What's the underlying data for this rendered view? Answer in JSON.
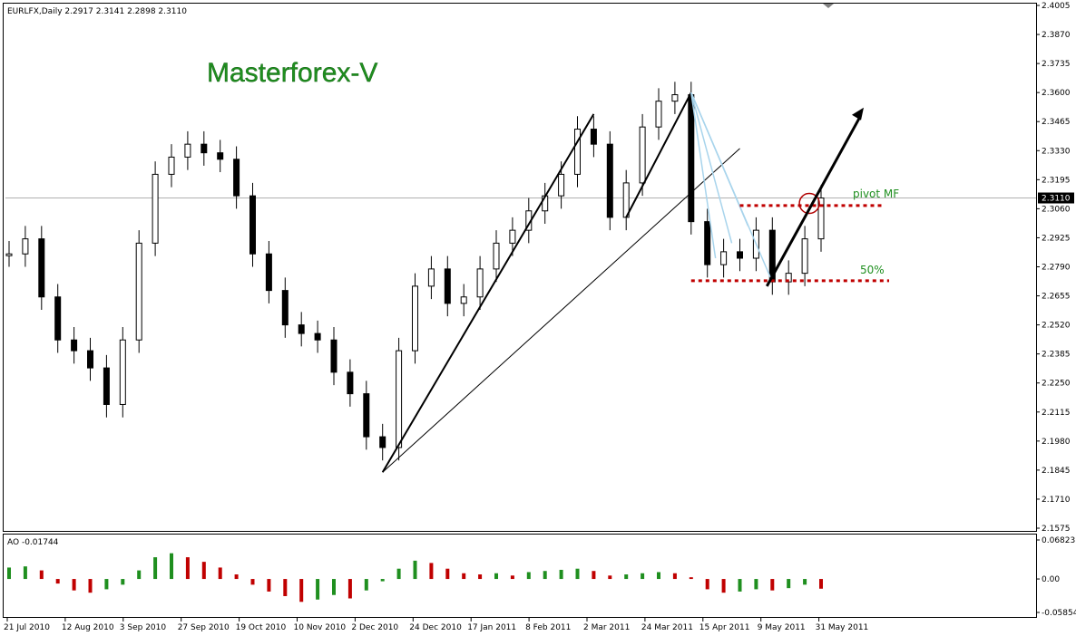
{
  "header": {
    "symbol_line": "EURLFX,Daily  2.2917 2.3141 2.2898 2.3110",
    "brand": "Masterforex-V"
  },
  "annotations": {
    "pivot": "pivot MF",
    "fifty": "50%"
  },
  "indicator": {
    "label": "AO -0.01744"
  },
  "colors": {
    "candle": "#000000",
    "ao_up": "#1f8f1f",
    "ao_down": "#c00000",
    "pivot_line": "#c00000",
    "fan_line": "#a8d4ec",
    "brand": "#1f8f1f"
  },
  "chart_data": [
    {
      "type": "candlestick",
      "instrument": "EURLFX",
      "timeframe": "Daily",
      "last_ohlc": {
        "open": 2.2917,
        "high": 2.3141,
        "low": 2.2898,
        "close": 2.311
      },
      "ylim": [
        2.1575,
        2.4005
      ],
      "y_ticks": [
        "2.4005",
        "2.3870",
        "2.3735",
        "2.3600",
        "2.3465",
        "2.3330",
        "2.3195",
        "2.3060",
        "2.2925",
        "2.2790",
        "2.2655",
        "2.2520",
        "2.2385",
        "2.2250",
        "2.2115",
        "2.1980",
        "2.1845",
        "2.1710",
        "2.1575"
      ],
      "current_price_label": "2.3110",
      "x_ticks": [
        "21 Jul 2010",
        "12 Aug 2010",
        "3 Sep 2010",
        "27 Sep 2010",
        "19 Oct 2010",
        "10 Nov 2010",
        "2 Dec 2010",
        "24 Dec 2010",
        "17 Jan 2011",
        "8 Feb 2011",
        "2 Mar 2011",
        "24 Mar 2011",
        "15 Apr 2011",
        "9 May 2011",
        "31 May 2011"
      ],
      "series": [
        {
          "x": [
            "21 Jul 2010",
            "28 Jul 2010",
            "4 Aug 2010",
            "12 Aug 2010",
            "20 Aug 2010",
            "27 Aug 2010",
            "3 Sep 2010",
            "10 Sep 2010",
            "17 Sep 2010",
            "27 Sep 2010",
            "4 Oct 2010",
            "12 Oct 2010",
            "19 Oct 2010",
            "27 Oct 2010",
            "3 Nov 2010",
            "10 Nov 2010",
            "18 Nov 2010",
            "25 Nov 2010",
            "2 Dec 2010",
            "10 Dec 2010",
            "17 Dec 2010",
            "24 Dec 2010",
            "27 Dec 2010",
            "3 Jan 2011",
            "10 Jan 2011",
            "17 Jan 2011",
            "25 Jan 2011",
            "1 Feb 2011",
            "8 Feb 2011",
            "16 Feb 2011",
            "23 Feb 2011",
            "2 Mar 2011",
            "10 Mar 2011",
            "17 Mar 2011",
            "24 Mar 2011",
            "31 Mar 2011",
            "6 Apr 2011",
            "11 Apr 2011",
            "15 Apr 2011",
            "20 Apr 2011",
            "25 Apr 2011",
            "29 Apr 2011",
            "3 May 2011",
            "6 May 2011",
            "9 May 2011",
            "13 May 2011",
            "17 May 2011",
            "20 May 2011",
            "24 May 2011",
            "27 May 2011",
            "31 May 2011"
          ],
          "close": [
            2.285,
            2.292,
            2.265,
            2.245,
            2.24,
            2.232,
            2.215,
            2.245,
            2.29,
            2.322,
            2.33,
            2.336,
            2.332,
            2.329,
            2.312,
            2.285,
            2.268,
            2.252,
            2.248,
            2.245,
            2.23,
            2.22,
            2.2,
            2.195,
            2.24,
            2.27,
            2.278,
            2.262,
            2.265,
            2.278,
            2.29,
            2.296,
            2.305,
            2.312,
            2.322,
            2.343,
            2.336,
            2.302,
            2.318,
            2.344,
            2.356,
            2.359,
            2.3,
            2.28,
            2.286,
            2.283,
            2.296,
            2.272,
            2.276,
            2.292,
            2.311
          ]
        }
      ]
    },
    {
      "type": "bar",
      "name": "AO",
      "value_label": "AO -0.01744",
      "ylim": [
        -0.05854,
        0.06823
      ],
      "y_ticks": [
        "0.06823",
        "0.00",
        "-0.05854"
      ],
      "values": [
        0.02,
        0.022,
        0.015,
        -0.008,
        -0.02,
        -0.024,
        -0.018,
        -0.01,
        0.015,
        0.038,
        0.045,
        0.038,
        0.03,
        0.02,
        0.008,
        -0.01,
        -0.022,
        -0.03,
        -0.04,
        -0.036,
        -0.028,
        -0.034,
        -0.02,
        -0.004,
        0.018,
        0.032,
        0.028,
        0.018,
        0.01,
        0.008,
        0.01,
        0.006,
        0.012,
        0.014,
        0.016,
        0.018,
        0.014,
        0.006,
        0.008,
        0.01,
        0.012,
        0.01,
        0.003,
        -0.018,
        -0.024,
        -0.022,
        -0.018,
        -0.02,
        -0.016,
        -0.01,
        -0.017
      ]
    }
  ]
}
